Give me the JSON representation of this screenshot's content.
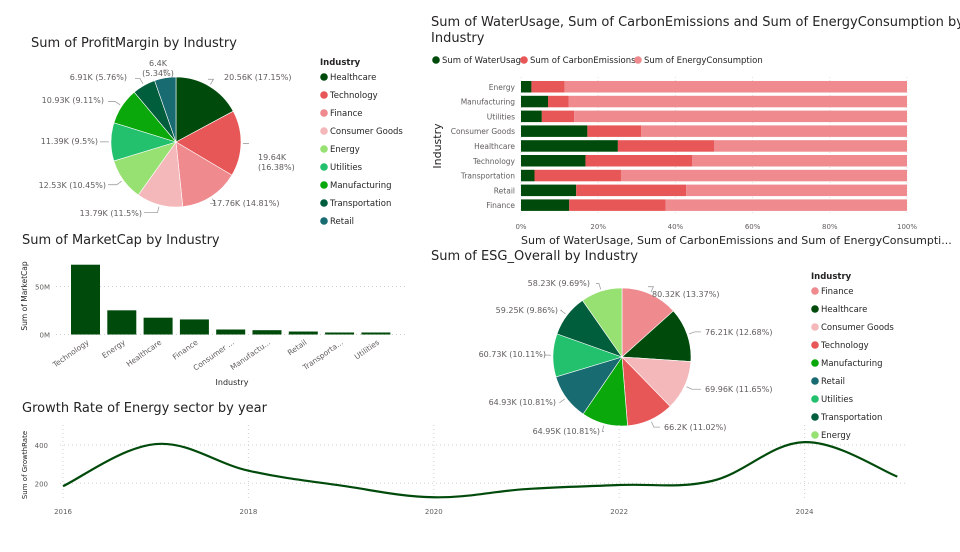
{
  "colors": {
    "Healthcare": "#004b0b",
    "Technology": "#e85757",
    "Finance": "#ef8a8e",
    "Consumer Goods": "#f5b8ba",
    "Energy": "#97e173",
    "Utilities": "#23c16e",
    "Manufacturing": "#0aa80a",
    "Transportation": "#015e3c",
    "Retail": "#176b71",
    "water": "#004b0b",
    "carbon": "#e85757",
    "energycons": "#ef8a8e",
    "bar": "#004b0b",
    "line": "#004b0b"
  },
  "chart_data": [
    {
      "id": "profit",
      "type": "pie",
      "title": "Sum of ProfitMargin by Industry",
      "legend_title": "Industry",
      "legend_position": "right",
      "slices": [
        {
          "label": "Healthcare",
          "value": 20.56,
          "display": "20.56K (17.15%)"
        },
        {
          "label": "Technology",
          "value": 19.64,
          "display": "19.64K (16.38%)"
        },
        {
          "label": "Finance",
          "value": 17.76,
          "display": "17.76K (14.81%)"
        },
        {
          "label": "Consumer Goods",
          "value": 13.79,
          "display": "13.79K (11.5%)"
        },
        {
          "label": "Energy",
          "value": 12.53,
          "display": "12.53K (10.45%)"
        },
        {
          "label": "Utilities",
          "value": 11.39,
          "display": "11.39K (9.5%)"
        },
        {
          "label": "Manufacturing",
          "value": 10.93,
          "display": "10.93K (9.11%)"
        },
        {
          "label": "Transportation",
          "value": 6.91,
          "display": "6.91K (5.76%)"
        },
        {
          "label": "Retail",
          "value": 6.4,
          "display": "6.4K (5.34%)"
        }
      ]
    },
    {
      "id": "stacked",
      "type": "bar",
      "orientation": "horizontal",
      "stacking": "100%",
      "title": "Sum of WaterUsage, Sum of CarbonEmissions and Sum of EnergyConsumption by Industry",
      "title_line1": "Sum of WaterUsage, Sum of CarbonEmissions and Sum of EnergyConsumption by",
      "title_line2": "Industry",
      "xlabel": "Sum of WaterUsage, Sum of CarbonEmissions and Sum of EnergyConsumpti...",
      "ylabel": "Industry",
      "xticks": [
        "0%",
        "20%",
        "40%",
        "60%",
        "80%",
        "100%"
      ],
      "legend_position": "top-left",
      "categories": [
        "Energy",
        "Manufacturing",
        "Utilities",
        "Consumer Goods",
        "Healthcare",
        "Technology",
        "Transportation",
        "Retail",
        "Finance"
      ],
      "series": [
        {
          "name": "Sum of WaterUsage",
          "key": "water",
          "values": [
            2.7,
            7.0,
            5.4,
            17.2,
            25.1,
            16.7,
            3.5,
            14.3,
            12.5
          ]
        },
        {
          "name": "Sum of CarbonEmissions",
          "key": "carbon",
          "values": [
            8.6,
            5.3,
            8.4,
            13.9,
            24.9,
            27.6,
            22.4,
            28.5,
            25.0
          ]
        },
        {
          "name": "Sum of EnergyConsumption",
          "key": "energycons",
          "values": [
            88.7,
            87.7,
            86.2,
            68.9,
            50.0,
            55.7,
            74.1,
            57.2,
            62.5
          ]
        }
      ]
    },
    {
      "id": "marketcap",
      "type": "bar",
      "title": "Sum of MarketCap by Industry",
      "xlabel": "Industry",
      "ylabel": "Sum of MarketCap",
      "yticks": [
        "0M",
        "50M"
      ],
      "ylim": [
        0,
        75
      ],
      "categories": [
        "Technology",
        "Energy",
        "Healthcare",
        "Finance",
        "Consumer ...",
        "Manufactu...",
        "Retail",
        "Transporta...",
        "Utilities"
      ],
      "values": [
        72.7,
        25.2,
        17.5,
        15.7,
        5.2,
        4.5,
        3.1,
        2.1,
        2.1
      ]
    },
    {
      "id": "esg",
      "type": "pie",
      "title": "Sum of ESG_Overall by Industry",
      "legend_title": "Industry",
      "legend_position": "right",
      "slices": [
        {
          "label": "Finance",
          "value": 80.32,
          "display": "80.32K (13.37%)"
        },
        {
          "label": "Healthcare",
          "value": 76.21,
          "display": "76.21K (12.68%)"
        },
        {
          "label": "Consumer Goods",
          "value": 69.96,
          "display": "69.96K (11.65%)"
        },
        {
          "label": "Technology",
          "value": 66.2,
          "display": "66.2K (11.02%)"
        },
        {
          "label": "Manufacturing",
          "value": 64.95,
          "display": "64.95K (10.81%)"
        },
        {
          "label": "Retail",
          "value": 64.93,
          "display": "64.93K (10.81%)"
        },
        {
          "label": "Utilities",
          "value": 60.73,
          "display": "60.73K (10.11%)"
        },
        {
          "label": "Transportation",
          "value": 59.25,
          "display": "59.25K (9.86%)"
        },
        {
          "label": "Energy",
          "value": 58.23,
          "display": "58.23K (9.69%)"
        }
      ]
    },
    {
      "id": "growth",
      "type": "line",
      "title": "Growth Rate of Energy sector by year",
      "xlabel": "",
      "ylabel": "Sum of GrowthRate",
      "yticks": [
        200,
        400
      ],
      "xticks": [
        "2016",
        "2018",
        "2020",
        "2022",
        "2024"
      ],
      "x": [
        2016,
        2017,
        2018,
        2019,
        2020,
        2021,
        2022,
        2023,
        2024,
        2025
      ],
      "values": [
        185,
        405,
        266,
        188,
        127,
        170,
        191,
        212,
        415,
        235
      ]
    }
  ]
}
